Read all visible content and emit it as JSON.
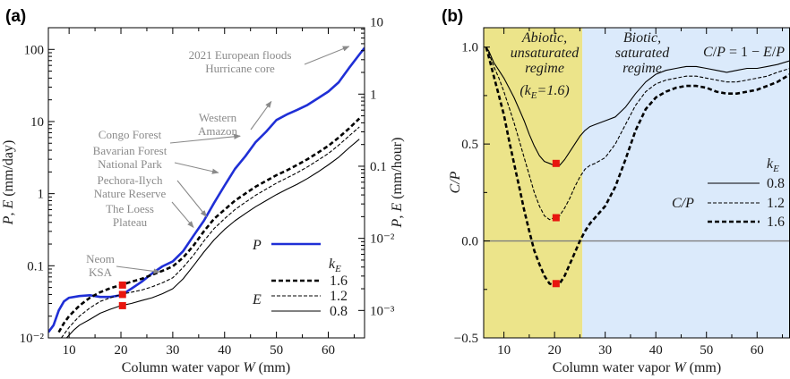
{
  "chart_data": [
    {
      "panel": "(a)",
      "type": "line",
      "xlabel_text": "Column water vapor ",
      "xlabel_var": "W",
      "xlabel_unit": " (mm)",
      "ylabel_text": "P, E (mm/day)",
      "ylabel_right_text": "P, E (mm/hour)",
      "xlim": [
        6,
        67
      ],
      "ylim": [
        0.01,
        200
      ],
      "yscale": "log",
      "x_ticks": [
        10,
        20,
        30,
        40,
        50,
        60
      ],
      "y_ticks": [
        {
          "v": 0.01,
          "label": "10⁻²"
        },
        {
          "v": 0.1,
          "label": "0.1"
        },
        {
          "v": 1,
          "label": "1"
        },
        {
          "v": 10,
          "label": "10"
        },
        {
          "v": 100,
          "label": "100"
        }
      ],
      "y_right_ticks": [
        {
          "v": 0.001,
          "label": "10⁻³"
        },
        {
          "v": 0.01,
          "label": "10⁻²"
        },
        {
          "v": 0.1,
          "label": "0.1"
        },
        {
          "v": 1,
          "label": "1"
        },
        {
          "v": 10,
          "label": "10"
        }
      ],
      "series": [
        {
          "name": "P",
          "color": "#1f2fd6",
          "style": "solid-thick",
          "x": [
            6,
            7,
            8,
            9,
            10,
            12,
            14,
            16,
            18,
            20,
            22,
            24,
            26,
            28,
            30,
            32,
            34,
            36,
            38,
            40,
            42,
            44,
            46,
            48,
            50,
            52,
            54,
            56,
            58,
            60,
            62,
            64,
            66,
            67
          ],
          "y": [
            0.012,
            0.015,
            0.024,
            0.032,
            0.036,
            0.038,
            0.039,
            0.037,
            0.037,
            0.039,
            0.048,
            0.06,
            0.078,
            0.098,
            0.115,
            0.16,
            0.26,
            0.42,
            0.75,
            1.3,
            2.2,
            3.3,
            5.2,
            7.2,
            10.5,
            12.5,
            14.5,
            17,
            21,
            26,
            35,
            55,
            85,
            105
          ]
        },
        {
          "name": "1.6",
          "color": "#000000",
          "style": "dashed-thick",
          "x": [
            8,
            9,
            10,
            12,
            14,
            16,
            18,
            20,
            22,
            24,
            26,
            28,
            30,
            32,
            34,
            36,
            38,
            40,
            42,
            44,
            46,
            48,
            50,
            52,
            54,
            56,
            58,
            60,
            62,
            64,
            66
          ],
          "y": [
            0.012,
            0.016,
            0.02,
            0.028,
            0.036,
            0.043,
            0.049,
            0.054,
            0.06,
            0.066,
            0.075,
            0.085,
            0.098,
            0.13,
            0.19,
            0.3,
            0.45,
            0.6,
            0.8,
            1.0,
            1.25,
            1.5,
            1.8,
            2.1,
            2.5,
            3.0,
            3.7,
            4.6,
            6.0,
            8.0,
            11.0
          ]
        },
        {
          "name": "1.2",
          "color": "#000000",
          "style": "dashed-thin",
          "x": [
            8.5,
            10,
            12,
            14,
            16,
            18,
            20,
            22,
            24,
            26,
            28,
            30,
            32,
            34,
            36,
            38,
            40,
            42,
            44,
            46,
            48,
            50,
            52,
            54,
            56,
            58,
            60,
            62,
            64,
            66
          ],
          "y": [
            0.01,
            0.014,
            0.02,
            0.026,
            0.032,
            0.036,
            0.04,
            0.043,
            0.046,
            0.051,
            0.058,
            0.068,
            0.095,
            0.14,
            0.22,
            0.33,
            0.45,
            0.6,
            0.76,
            0.95,
            1.15,
            1.4,
            1.65,
            1.95,
            2.35,
            2.9,
            3.6,
            4.7,
            6.3,
            8.4
          ]
        },
        {
          "name": "0.8",
          "color": "#000000",
          "style": "solid-thin",
          "x": [
            9.5,
            11,
            12,
            14,
            16,
            18,
            20,
            22,
            24,
            26,
            28,
            30,
            32,
            34,
            36,
            38,
            40,
            42,
            44,
            46,
            48,
            50,
            52,
            54,
            56,
            58,
            60,
            62,
            64,
            66
          ],
          "y": [
            0.01,
            0.013,
            0.015,
            0.018,
            0.022,
            0.025,
            0.028,
            0.03,
            0.033,
            0.036,
            0.041,
            0.048,
            0.066,
            0.1,
            0.155,
            0.23,
            0.32,
            0.42,
            0.53,
            0.66,
            0.8,
            0.97,
            1.15,
            1.35,
            1.62,
            2.0,
            2.5,
            3.2,
            4.3,
            5.7
          ]
        }
      ],
      "markers": [
        {
          "x": 20.3,
          "y": 0.054
        },
        {
          "x": 20.3,
          "y": 0.04
        },
        {
          "x": 20.3,
          "y": 0.028
        }
      ],
      "marker_color": "#e8160f",
      "legend": {
        "P_label": "P",
        "E_label": "E",
        "kE_label": "k",
        "kE_sub": "E",
        "items": [
          "1.6",
          "1.2",
          "0.8"
        ]
      },
      "annotations": [
        {
          "lines": [
            "2021 European floods",
            "Hurricane core"
          ],
          "x": 64,
          "y": 110
        },
        {
          "lines": [
            "Western",
            "Amazon"
          ],
          "x": 49,
          "y": 19
        },
        {
          "lines": [
            "Congo Forest"
          ],
          "x": 43,
          "y": 6.3
        },
        {
          "lines": [
            "Bavarian Forest",
            "National Park"
          ],
          "x": 38.8,
          "y": 1.95
        },
        {
          "lines": [
            "Pechora-Ilych",
            "Nature Reserve"
          ],
          "x": 36.5,
          "y": 0.48
        },
        {
          "lines": [
            "The Loess",
            "Plateau"
          ],
          "x": 34,
          "y": 0.34
        },
        {
          "lines": [
            "Neom",
            "KSA"
          ],
          "x": 27.5,
          "y": 0.082
        }
      ]
    },
    {
      "panel": "(b)",
      "type": "line",
      "xlabel_text": "Column water vapor ",
      "xlabel_var": "W",
      "xlabel_unit": " (mm)",
      "ylabel_text": "C/P",
      "xlim": [
        6,
        66.5
      ],
      "ylim": [
        -0.5,
        1.1
      ],
      "x_ticks": [
        10,
        20,
        30,
        40,
        50,
        60
      ],
      "y_ticks": [
        {
          "v": -0.5,
          "label": "−0.5"
        },
        {
          "v": 0,
          "label": "0.0"
        },
        {
          "v": 0.5,
          "label": "0.5"
        },
        {
          "v": 1,
          "label": "1.0"
        }
      ],
      "regions": [
        {
          "x0": 6,
          "x1": 25.5,
          "color": "#ece48a",
          "lines": [
            "Abiotic,",
            "unsaturated",
            "regime"
          ]
        },
        {
          "x0": 25.5,
          "x1": 66.5,
          "color": "#dbeafb",
          "lines": [
            "Biotic,",
            "saturated",
            "regime"
          ]
        }
      ],
      "regime_note": "(k_E=1.6)",
      "formula": "C/P = 1 − E/P",
      "zero_line_color": "#7f7f7f",
      "series": [
        {
          "name": "0.8",
          "style": "solid-thin",
          "x": [
            6.5,
            7,
            8,
            9,
            10,
            11,
            12,
            13,
            14,
            15,
            16,
            17,
            18,
            19,
            20,
            21,
            22,
            23,
            24,
            25,
            26,
            27,
            28,
            30,
            32,
            34,
            36,
            38,
            40,
            42,
            44,
            46,
            48,
            50,
            52,
            54,
            56,
            58,
            60,
            62,
            64,
            66.5
          ],
          "y": [
            1.0,
            0.98,
            0.92,
            0.88,
            0.84,
            0.79,
            0.74,
            0.68,
            0.62,
            0.55,
            0.49,
            0.44,
            0.41,
            0.4,
            0.39,
            0.39,
            0.42,
            0.46,
            0.5,
            0.54,
            0.57,
            0.59,
            0.6,
            0.62,
            0.64,
            0.69,
            0.76,
            0.82,
            0.86,
            0.88,
            0.89,
            0.9,
            0.9,
            0.89,
            0.88,
            0.87,
            0.88,
            0.89,
            0.89,
            0.9,
            0.91,
            0.93
          ]
        },
        {
          "name": "1.2",
          "style": "dashed-thin",
          "x": [
            6.5,
            7,
            8,
            9,
            10,
            11,
            12,
            13,
            14,
            15,
            16,
            17,
            18,
            19,
            20,
            21,
            22,
            23,
            24,
            25,
            26,
            27,
            28,
            30,
            32,
            34,
            36,
            38,
            40,
            42,
            44,
            46,
            48,
            50,
            52,
            54,
            56,
            58,
            60,
            62,
            64,
            66.5
          ],
          "y": [
            1.0,
            0.97,
            0.9,
            0.84,
            0.77,
            0.69,
            0.61,
            0.52,
            0.43,
            0.34,
            0.25,
            0.18,
            0.13,
            0.11,
            0.12,
            0.13,
            0.17,
            0.22,
            0.28,
            0.33,
            0.37,
            0.39,
            0.4,
            0.43,
            0.5,
            0.6,
            0.7,
            0.77,
            0.81,
            0.83,
            0.84,
            0.85,
            0.85,
            0.84,
            0.83,
            0.82,
            0.82,
            0.83,
            0.84,
            0.85,
            0.87,
            0.89
          ]
        },
        {
          "name": "1.6",
          "style": "dashed-thick",
          "x": [
            6.5,
            7,
            8,
            9,
            10,
            11,
            12,
            13,
            14,
            15,
            16,
            17,
            18,
            19,
            20,
            21,
            22,
            23,
            24,
            25,
            26,
            27,
            28,
            30,
            32,
            34,
            36,
            38,
            40,
            42,
            44,
            46,
            48,
            50,
            52,
            54,
            56,
            58,
            60,
            62,
            64,
            66.5
          ],
          "y": [
            1.0,
            0.95,
            0.85,
            0.75,
            0.65,
            0.52,
            0.4,
            0.28,
            0.16,
            0.05,
            -0.05,
            -0.12,
            -0.18,
            -0.22,
            -0.23,
            -0.22,
            -0.18,
            -0.12,
            -0.06,
            0.0,
            0.05,
            0.09,
            0.12,
            0.18,
            0.28,
            0.42,
            0.57,
            0.68,
            0.74,
            0.77,
            0.79,
            0.8,
            0.8,
            0.79,
            0.77,
            0.76,
            0.76,
            0.77,
            0.78,
            0.8,
            0.82,
            0.86
          ]
        }
      ],
      "markers": [
        {
          "x": 20.3,
          "y": 0.4
        },
        {
          "x": 20.3,
          "y": 0.12
        },
        {
          "x": 20.3,
          "y": -0.22
        }
      ],
      "marker_color": "#e8160f",
      "legend": {
        "title": "k",
        "title_sub": "E",
        "label": "C/P",
        "items": [
          "0.8",
          "1.2",
          "1.6"
        ]
      }
    }
  ]
}
